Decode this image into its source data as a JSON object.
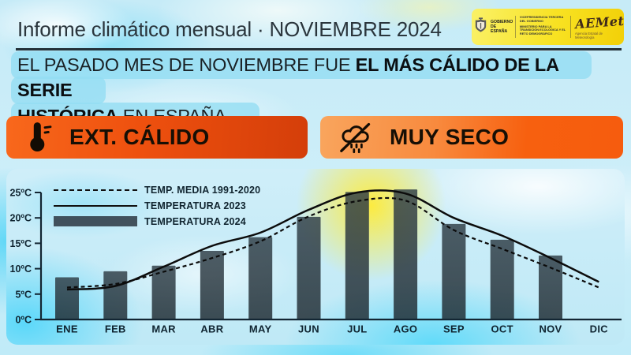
{
  "header": {
    "title": "Informe climático mensual · NOVIEMBRE 2024",
    "gov_logo": {
      "gobierno": "GOBIERNO DE ESPAÑA",
      "vicepresidencia": "VICEPRESIDENCIA TERCERA DEL GOBIERNO",
      "ministerio": "MINISTERIO PARA LA TRANSICIÓN ECOLÓGICA Y EL RETO DEMOGRÁFICO",
      "aemet": "AEMet",
      "aemet_sub": "Agencia Estatal de Meteorología"
    }
  },
  "headline": {
    "line1_regular": "EL PASADO MES DE NOVIEMBRE FUE ",
    "line1_bold": "EL MÁS CÁLIDO DE LA SERIE",
    "line2_bold": "HISTÓRICA",
    "line2_regular": " EN ESPAÑA"
  },
  "badges": [
    {
      "label": "EXT. CÁLIDO",
      "icon": "thermometer-icon"
    },
    {
      "label": "MUY SECO",
      "icon": "no-rain-icon"
    }
  ],
  "colors": {
    "accent_orange": "#f25c0e",
    "accent_dark_orange": "#d43e0a",
    "brand_yellow": "#f7e01c",
    "bar_fill": "#263038",
    "sky_blue": "#cdeef9",
    "highlight_cyan": "#9fe0f0",
    "line_black": "#101010"
  },
  "chart_data": {
    "type": "bar",
    "title": "",
    "xlabel": "",
    "ylabel": "",
    "ylim": [
      0,
      25.6
    ],
    "grid": false,
    "legend_position": "top-left",
    "categories": [
      "ENE",
      "FEB",
      "MAR",
      "ABR",
      "MAY",
      "JUN",
      "JUL",
      "AGO",
      "SEP",
      "OCT",
      "NOV",
      "DIC"
    ],
    "y_tick_labels": [
      "0ºC",
      "5ºC",
      "10ºC",
      "15ºC",
      "20ºC",
      "25ºC"
    ],
    "y_tick_values": [
      0,
      5,
      10,
      15,
      20,
      25
    ],
    "series": [
      {
        "name": "TEMP. MEDIA 1991-2020",
        "type": "line",
        "style": "dashed",
        "values": [
          6.3,
          7.0,
          9.4,
          12.1,
          15.4,
          20.3,
          23.3,
          23.4,
          17.6,
          13.9,
          10.2,
          6.3
        ]
      },
      {
        "name": "TEMPERATURA 2023",
        "type": "line",
        "style": "solid",
        "values": [
          5.9,
          6.6,
          10.4,
          14.5,
          17.1,
          21.6,
          25.0,
          24.8,
          20.0,
          16.5,
          12.1,
          7.4
        ]
      },
      {
        "name": "TEMPERATURA 2024",
        "type": "bar",
        "values": [
          8.3,
          9.5,
          10.6,
          13.5,
          16.2,
          20.2,
          25.1,
          25.6,
          18.8,
          15.7,
          12.6,
          null
        ]
      }
    ]
  }
}
